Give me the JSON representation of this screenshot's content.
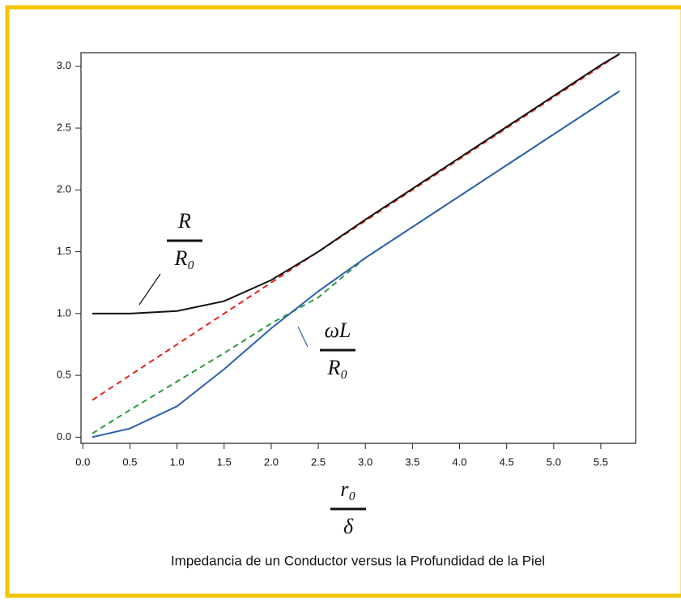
{
  "chart_data": {
    "type": "line",
    "title": "Impedancia de un Conductor versus la Profundidad de la Piel",
    "x_label": {
      "numerator": "r₀",
      "denominator": "δ"
    },
    "annotations": [
      {
        "numerator": "R",
        "denominator": "R₀"
      },
      {
        "numerator": "ωL",
        "denominator": "R₀"
      }
    ],
    "x": [
      0.1,
      0.5,
      1.0,
      1.5,
      2.0,
      2.5,
      3.0,
      3.5,
      4.0,
      4.5,
      5.0,
      5.5,
      5.7
    ],
    "series": [
      {
        "color": "#e8211d",
        "dash": true,
        "values": [
          0.3,
          0.5,
          0.75,
          1.0,
          1.25,
          1.5,
          1.75,
          2.0,
          2.25,
          2.5,
          2.75,
          3.0,
          3.1
        ]
      },
      {
        "color": "#111111",
        "dash": false,
        "values": [
          1.0,
          1.0,
          1.02,
          1.1,
          1.27,
          1.5,
          1.76,
          2.01,
          2.26,
          2.51,
          2.76,
          3.01,
          3.1
        ]
      },
      {
        "color": "#2e9a3e",
        "dash": true,
        "values": [
          0.03,
          0.22,
          0.45,
          0.68,
          0.92,
          1.13,
          1.45,
          1.7,
          1.95,
          2.2,
          2.45,
          2.7,
          2.8
        ]
      },
      {
        "color": "#2b5fae",
        "dash": false,
        "values": [
          0.0,
          0.07,
          0.25,
          0.55,
          0.88,
          1.18,
          1.45,
          1.7,
          1.95,
          2.2,
          2.45,
          2.7,
          2.8
        ]
      }
    ],
    "xlim": [
      -0.02,
      5.87
    ],
    "ylim": [
      -0.05,
      3.11
    ],
    "xticks": [
      {
        "value": 0,
        "label": "0.0"
      },
      {
        "value": 0.5,
        "label": "0.5"
      },
      {
        "value": 1,
        "label": "1.0"
      },
      {
        "value": 1.5,
        "label": "1.5"
      },
      {
        "value": 2,
        "label": "2.0"
      },
      {
        "value": 2.5,
        "label": "2.5"
      },
      {
        "value": 3,
        "label": "3.0"
      },
      {
        "value": 3.5,
        "label": "3.5"
      },
      {
        "value": 4,
        "label": "4.0"
      },
      {
        "value": 4.5,
        "label": "4.5"
      },
      {
        "value": 5,
        "label": "5.0"
      },
      {
        "value": 5.5,
        "label": "5.5"
      }
    ],
    "yticks": [
      {
        "value": 0,
        "label": "0.0"
      },
      {
        "value": 0.5,
        "label": "0.5"
      },
      {
        "value": 1,
        "label": "1.0"
      },
      {
        "value": 1.5,
        "label": "1.5"
      },
      {
        "value": 2,
        "label": "2.0"
      },
      {
        "value": 2.5,
        "label": "2.5"
      },
      {
        "value": 3,
        "label": "3.0"
      }
    ],
    "grid": false
  }
}
